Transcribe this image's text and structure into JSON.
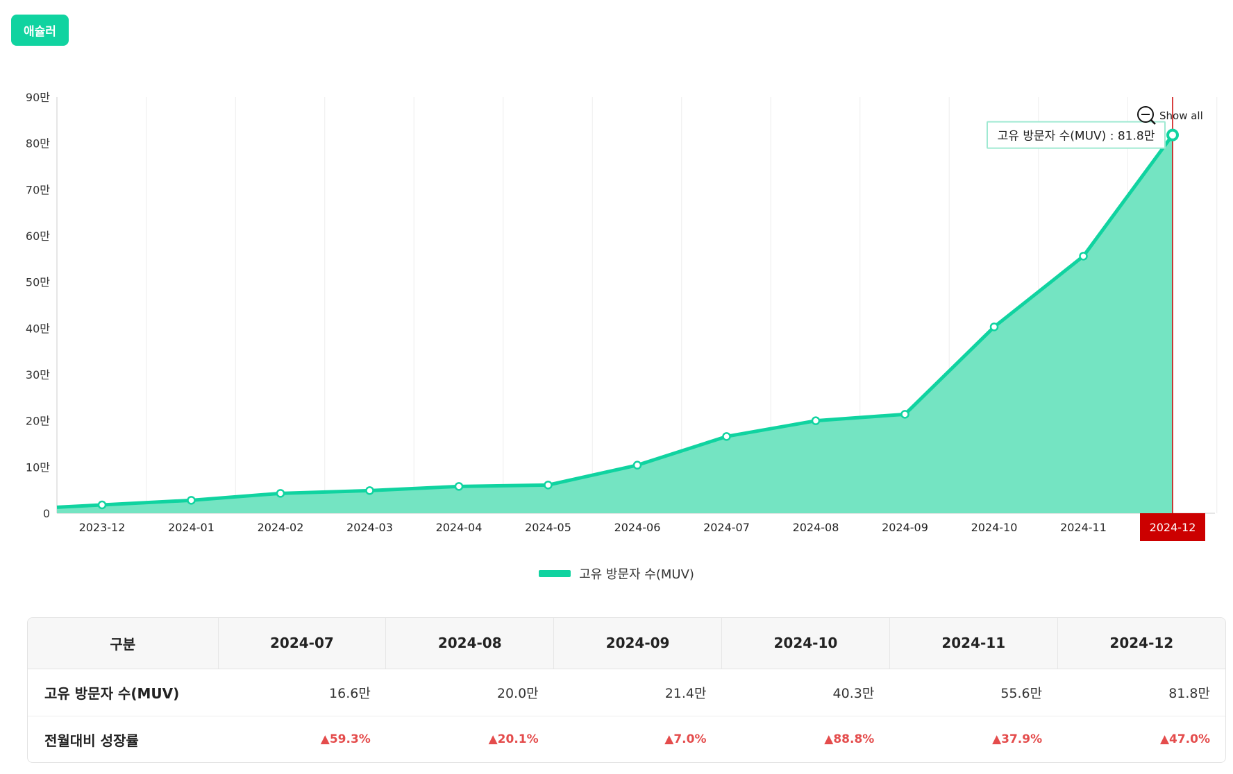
{
  "header": {
    "tag_label": "애슐러"
  },
  "colors": {
    "accent": "#10d3a0",
    "area_fill": "#74e4c2",
    "marker": "#cc0000",
    "growth_up": "#e44c4c",
    "grid": "#eeeeee"
  },
  "chart_data": {
    "type": "area",
    "categories": [
      "2023-12",
      "2024-01",
      "2024-02",
      "2024-03",
      "2024-04",
      "2024-05",
      "2024-06",
      "2024-07",
      "2024-08",
      "2024-09",
      "2024-10",
      "2024-11",
      "2024-12"
    ],
    "series": [
      {
        "name": "고유 방문자 수(MUV)",
        "values": [
          1.8,
          2.8,
          4.3,
          4.9,
          5.8,
          6.1,
          10.4,
          16.6,
          20.0,
          21.4,
          40.3,
          55.6,
          81.8
        ]
      }
    ],
    "y_unit": "만",
    "ylim": [
      0,
      90
    ],
    "yticks": [
      "0",
      "10만",
      "20만",
      "30만",
      "40만",
      "50만",
      "60만",
      "70만",
      "80만",
      "90만"
    ],
    "ytick_values": [
      0,
      10,
      20,
      30,
      40,
      50,
      60,
      70,
      80,
      90
    ],
    "grid": "vertical",
    "legend_position": "bottom-center",
    "highlight_category": "2024-12",
    "tooltip": "고유 방문자 수(MUV) : 81.8만",
    "zoom_label": "Show all"
  },
  "table": {
    "headers": [
      "구분",
      "2024-07",
      "2024-08",
      "2024-09",
      "2024-10",
      "2024-11",
      "2024-12"
    ],
    "rows": [
      {
        "label": "고유 방문자 수(MUV)",
        "cells": [
          "16.6만",
          "20.0만",
          "21.4만",
          "40.3만",
          "55.6만",
          "81.8만"
        ]
      },
      {
        "label": "전월대비 성장률",
        "cells": [
          "▲59.3%",
          "▲20.1%",
          "▲7.0%",
          "▲88.8%",
          "▲37.9%",
          "▲47.0%"
        ]
      }
    ]
  }
}
